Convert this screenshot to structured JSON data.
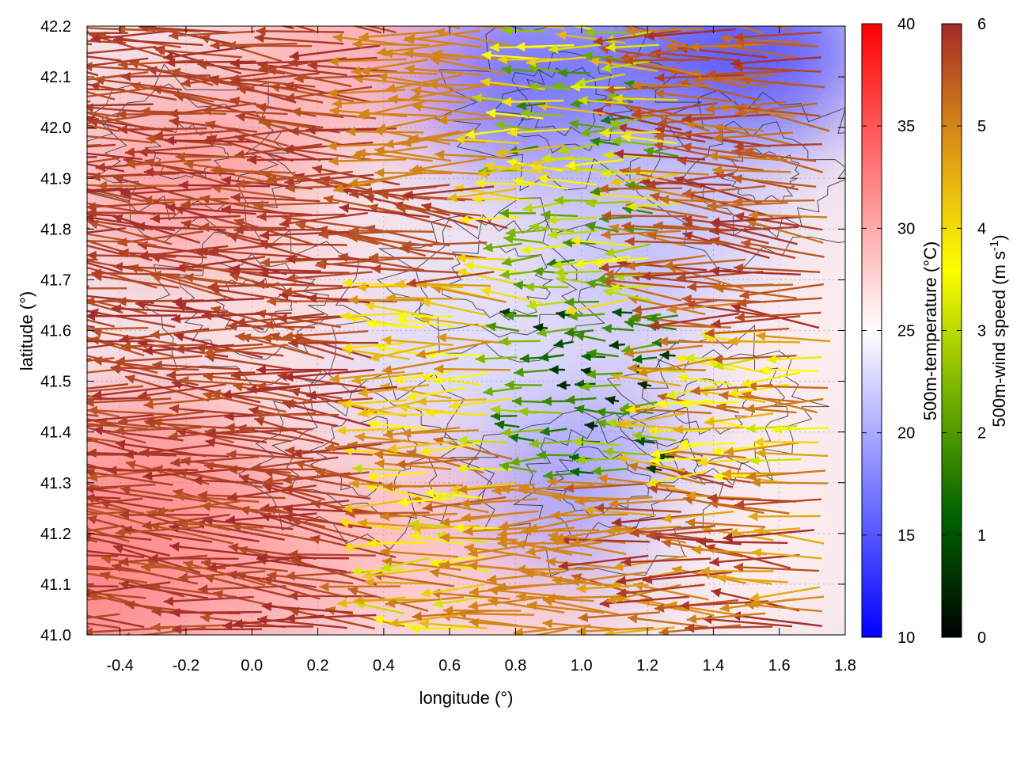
{
  "chart_data": {
    "type": "quiver-heatmap",
    "xlabel": "longitude (°)",
    "ylabel": "latitude (°)",
    "xlim": [
      -0.5,
      1.8
    ],
    "ylim": [
      41.0,
      42.2
    ],
    "xticks": [
      "-0.4",
      "-0.2",
      "0.0",
      "0.2",
      "0.4",
      "0.6",
      "0.8",
      "1.0",
      "1.2",
      "1.4",
      "1.6",
      "1.8"
    ],
    "yticks": [
      "41.0",
      "41.1",
      "41.2",
      "41.3",
      "41.4",
      "41.5",
      "41.6",
      "41.7",
      "41.8",
      "41.9",
      "42.0",
      "42.1",
      "42.2"
    ],
    "temperature_colorbar": {
      "label": "500m-temperature (°C)",
      "range": [
        10,
        40
      ],
      "ticks": [
        "10",
        "15",
        "20",
        "25",
        "30",
        "35",
        "40"
      ],
      "colors": [
        "#0000ff",
        "#ffffff",
        "#ff0000"
      ]
    },
    "wind_colorbar": {
      "label": "500m-wind speed (m s",
      "label_sup": "-1",
      "label_end": ")",
      "range": [
        0,
        6
      ],
      "ticks": [
        "0",
        "1",
        "2",
        "3",
        "4",
        "5",
        "6"
      ],
      "colors": [
        "#000000",
        "#006400",
        "#78b400",
        "#ffff00",
        "#dc9614",
        "#a52a2a"
      ]
    },
    "temperature_regions": [
      {
        "lon": -0.45,
        "lat": 41.1,
        "temp": 33
      },
      {
        "lon": -0.3,
        "lat": 41.3,
        "temp": 32
      },
      {
        "lon": -0.2,
        "lat": 41.9,
        "temp": 31
      },
      {
        "lon": 0.0,
        "lat": 41.15,
        "temp": 31
      },
      {
        "lon": 0.25,
        "lat": 41.6,
        "temp": 27
      },
      {
        "lon": 0.3,
        "lat": 42.15,
        "temp": 30
      },
      {
        "lon": 0.45,
        "lat": 41.2,
        "temp": 29
      },
      {
        "lon": 0.6,
        "lat": 41.55,
        "temp": 23
      },
      {
        "lon": 0.8,
        "lat": 41.1,
        "temp": 28
      },
      {
        "lon": 0.85,
        "lat": 42.1,
        "temp": 16
      },
      {
        "lon": 1.05,
        "lat": 41.3,
        "temp": 19
      },
      {
        "lon": 1.25,
        "lat": 41.75,
        "temp": 21
      },
      {
        "lon": 1.5,
        "lat": 42.15,
        "temp": 14
      },
      {
        "lon": 1.5,
        "lat": 41.2,
        "temp": 26
      },
      {
        "lon": 1.7,
        "lat": 41.6,
        "temp": 26
      }
    ],
    "wind_field_summary": "Predominantly easterly flow (arrows pointing west). Strongest winds (~6 m/s) in the western half and along the southern and eastern edges; weak winds (0-3 m/s) over the central-eastern interior around lon 0.8-1.3, lat 41.3-42.1.",
    "wind_zones": [
      {
        "lon": [
          -0.5,
          0.45
        ],
        "lat": [
          41.0,
          42.2
        ],
        "speed": [
          5.5,
          6.0
        ]
      },
      {
        "lon": [
          0.45,
          0.8
        ],
        "lat": [
          41.7,
          41.9
        ],
        "speed": [
          5.5,
          6.0
        ]
      },
      {
        "lon": [
          0.45,
          0.8
        ],
        "lat": [
          41.4,
          41.7
        ],
        "speed": [
          3.5,
          5.0
        ]
      },
      {
        "lon": [
          0.45,
          0.8
        ],
        "lat": [
          41.0,
          41.4
        ],
        "speed": [
          3.0,
          5.5
        ]
      },
      {
        "lon": [
          0.8,
          1.3
        ],
        "lat": [
          41.3,
          41.65
        ],
        "speed": [
          0.5,
          3.0
        ]
      },
      {
        "lon": [
          0.8,
          1.3
        ],
        "lat": [
          41.65,
          42.2
        ],
        "speed": [
          1.5,
          4.5
        ]
      },
      {
        "lon": [
          1.3,
          1.8
        ],
        "lat": [
          41.6,
          42.2
        ],
        "speed": [
          5.0,
          6.0
        ]
      },
      {
        "lon": [
          1.3,
          1.8
        ],
        "lat": [
          41.3,
          41.6
        ],
        "speed": [
          3.0,
          5.5
        ]
      },
      {
        "lon": [
          1.2,
          1.8
        ],
        "lat": [
          41.0,
          41.3
        ],
        "speed": [
          4.5,
          6.0
        ]
      }
    ]
  }
}
